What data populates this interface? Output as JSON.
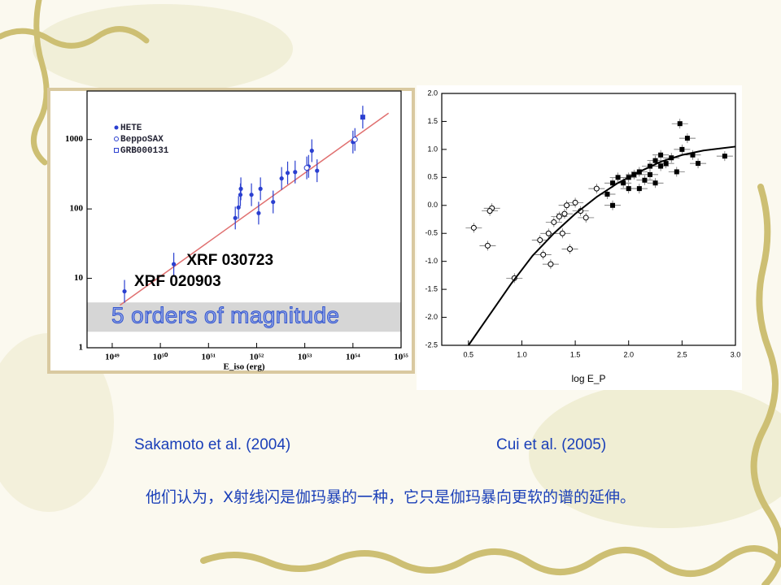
{
  "chart_data": [
    {
      "type": "scatter",
      "xlog": true,
      "ylog": true,
      "xlabel": "E_iso (erg)",
      "xlim": [
        3e+48,
        1e+55
      ],
      "ylim": [
        1,
        5000
      ],
      "xticks": [
        {
          "value": 1e+49,
          "label": "10⁴⁹"
        },
        {
          "value": 1e+50,
          "label": "10⁵⁰"
        },
        {
          "value": 1e+51,
          "label": "10⁵¹"
        },
        {
          "value": 1e+52,
          "label": "10⁵²"
        },
        {
          "value": 1e+53,
          "label": "10⁵³"
        },
        {
          "value": 1e+54,
          "label": "10⁵⁴"
        },
        {
          "value": 1e+55,
          "label": "10⁵⁵"
        }
      ],
      "yticks": [
        1,
        10,
        100,
        1000
      ],
      "series": [
        {
          "name": "HETE",
          "marker": "filled",
          "color": "#2a3fd0",
          "x": [
            1.8e+49,
            1.9e+50,
            3.6e+51,
            4.2e+51,
            4.6e+51,
            4.7e+51,
            7.8e+51,
            1.1e+52,
            1.2e+52,
            2.2e+52,
            3.3e+52,
            4.4e+52,
            6.3e+52,
            1.2e+53,
            1.4e+53,
            1.8e+53,
            1e+54
          ],
          "values": [
            6.5,
            16,
            74,
            105,
            160,
            195,
            160,
            87,
            195,
            126,
            275,
            330,
            340,
            410,
            690,
            355,
            920
          ]
        },
        {
          "name": "BeppoSAX",
          "marker": "open",
          "color": "#2a3fd0",
          "x": [
            1.1e+53,
            1.1e+54
          ],
          "values": [
            390,
            1000
          ]
        },
        {
          "name": "GRB000131",
          "marker": "square",
          "color": "#2a3fd0",
          "x": [
            1.6e+54
          ],
          "values": [
            2100
          ]
        }
      ],
      "fit_line": {
        "color": "#e07070",
        "x": [
          1.45e+49,
          5.5e+54
        ],
        "values": [
          4.1,
          2400
        ]
      },
      "band": {
        "ylim": [
          1.7,
          4.5
        ],
        "label": "5 orders of magnitude"
      },
      "annotations": [
        {
          "text": "XRF 030723",
          "x": 2.2e+50,
          "y": 16
        },
        {
          "text": "XRF 020903",
          "x": 1.8e+49,
          "y": 8
        }
      ]
    },
    {
      "type": "scatter",
      "xlabel": "log E_P",
      "xlim": [
        0.25,
        3.0
      ],
      "ylim": [
        -2.5,
        2.0
      ],
      "xticks": [
        0.5,
        {
          "value": 1,
          "label": "1.0"
        },
        1.5,
        {
          "value": 2,
          "label": "2.0"
        },
        2.5,
        {
          "value": 3,
          "label": "3.0"
        }
      ],
      "yticks": [
        {
          "value": -2.5,
          "label": "-2.5"
        },
        {
          "value": -2,
          "label": "-2.0"
        },
        {
          "value": -1.5,
          "label": "-1.5"
        },
        {
          "value": -1,
          "label": "-1.0"
        },
        {
          "value": -0.5,
          "label": "-0.5"
        },
        {
          "value": 0,
          "label": "0.0"
        },
        0.5,
        {
          "value": 1,
          "label": "1.0"
        },
        1.5,
        {
          "value": 2,
          "label": "2.0"
        }
      ],
      "series": [
        {
          "marker": "filled",
          "color": "#000000",
          "x": [
            2.48,
            2.55,
            2.5,
            2.4,
            2.3,
            2.25,
            2.2,
            2.1,
            2.0,
            1.9,
            1.95,
            2.05,
            2.15,
            2.2,
            2.3,
            2.35,
            2.1,
            2.0,
            1.85,
            1.8,
            1.85,
            2.6,
            2.65,
            2.9,
            2.45,
            2.25
          ],
          "values": [
            1.46,
            1.2,
            1.0,
            0.85,
            0.9,
            0.8,
            0.7,
            0.6,
            0.5,
            0.5,
            0.4,
            0.55,
            0.45,
            0.55,
            0.7,
            0.75,
            0.3,
            0.3,
            0.4,
            0.2,
            0.0,
            0.9,
            0.75,
            0.88,
            0.6,
            0.4
          ]
        },
        {
          "marker": "open",
          "color": "#000000",
          "x": [
            0.55,
            0.68,
            0.72,
            0.7,
            0.93,
            1.17,
            1.2,
            1.27,
            1.3,
            1.35,
            1.38,
            1.45,
            1.42,
            1.5,
            1.55,
            1.6,
            1.7,
            1.4,
            1.25
          ],
          "values": [
            -0.4,
            -0.72,
            -0.05,
            -0.1,
            -1.3,
            -0.62,
            -0.88,
            -1.05,
            -0.3,
            -0.2,
            -0.5,
            -0.78,
            0.0,
            0.05,
            -0.1,
            -0.22,
            0.3,
            -0.15,
            -0.5
          ]
        },
        {
          "marker": "line",
          "color": "#000000",
          "x": [
            0.5,
            0.7,
            0.9,
            1.1,
            1.3,
            1.5,
            1.7,
            1.9,
            2.1,
            2.3,
            2.5,
            2.7,
            3.0
          ],
          "values": [
            -2.5,
            -1.95,
            -1.4,
            -0.9,
            -0.5,
            -0.15,
            0.15,
            0.4,
            0.6,
            0.78,
            0.9,
            0.98,
            1.05
          ]
        }
      ]
    }
  ],
  "captions": [
    "Sakamoto et al. (2004)",
    "Cui et al. (2005)"
  ],
  "note": "他们认为，X射线闪是伽玛暴的一种，它只是伽玛暴向更软的谱的延伸。"
}
